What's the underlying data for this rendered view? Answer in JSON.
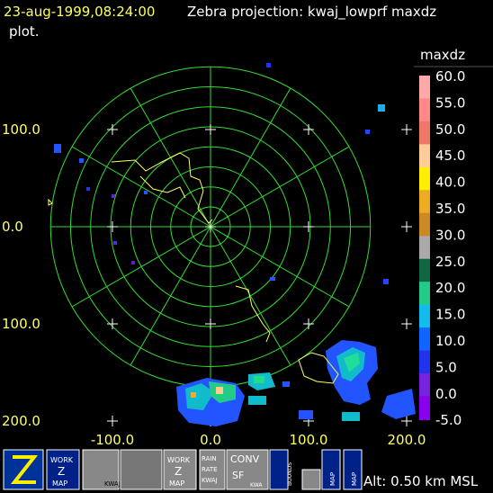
{
  "header": {
    "time": "23-aug-1999,08:24:00",
    "title": "Zebra projection: kwaj_lowprf maxdz",
    "title_cont": "plot."
  },
  "colorbar": {
    "label": "maxdz",
    "ticks": [
      "60.0",
      "55.0",
      "50.0",
      "45.0",
      "40.0",
      "35.0",
      "30.0",
      "25.0",
      "20.0",
      "15.0",
      "10.0",
      "5.0",
      "0.0",
      "-5.0"
    ]
  },
  "axes": {
    "y_labels": [
      "100.0",
      "0.0",
      "100.0",
      "200.0"
    ],
    "x_labels": [
      "-100.0",
      "0.0",
      "100.0",
      "200.0"
    ]
  },
  "toolbar": {
    "icons": [
      "WORK",
      "Z",
      "MAP",
      "KWAJ",
      "WORK",
      "Z",
      "MAP",
      "RAIN",
      "RATE",
      "KWAJ",
      "CONV",
      "SF",
      "KWA",
      "BOUNDS",
      "MAP",
      "MAP"
    ]
  },
  "status": "Alt: 0.50 km MSL"
}
